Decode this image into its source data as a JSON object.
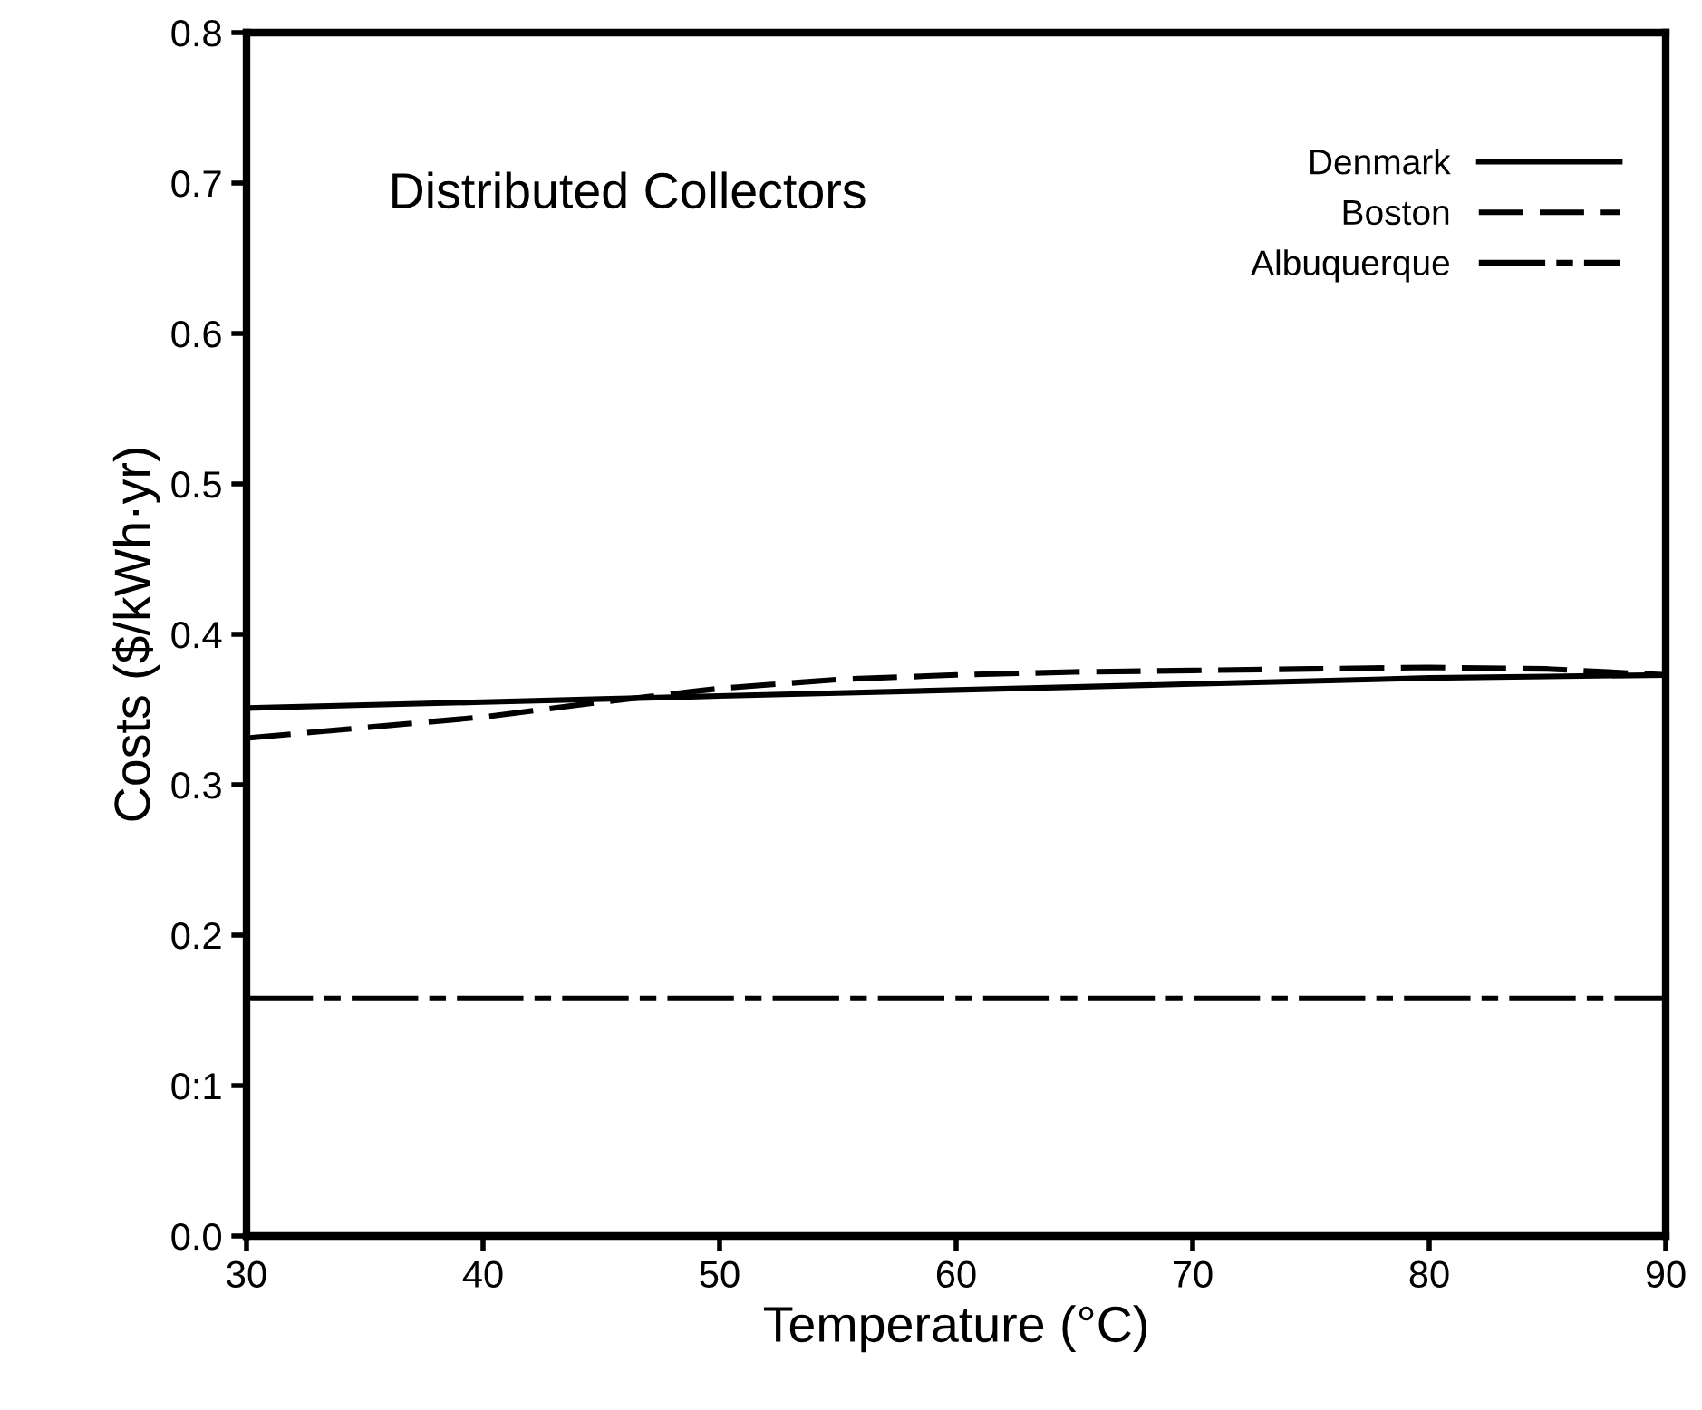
{
  "chart_data": {
    "type": "line",
    "title": "Distributed Collectors",
    "xlabel": "Temperature (°C)",
    "ylabel": "Costs ($/kWh·yr)",
    "x": [
      30,
      35,
      40,
      45,
      50,
      55,
      60,
      65,
      70,
      75,
      80,
      85,
      90
    ],
    "series": [
      {
        "name": "Denmark",
        "color": "#000000",
        "line_style": "solid",
        "values": [
          0.351,
          0.353,
          0.355,
          0.357,
          0.359,
          0.361,
          0.363,
          0.365,
          0.367,
          0.369,
          0.371,
          0.372,
          0.373
        ]
      },
      {
        "name": "Boston",
        "color": "#000000",
        "line_style": "dashed",
        "values": [
          0.331,
          0.338,
          0.345,
          0.355,
          0.364,
          0.37,
          0.373,
          0.375,
          0.376,
          0.377,
          0.378,
          0.377,
          0.373
        ]
      },
      {
        "name": "Albuquerque",
        "color": "#000000",
        "line_style": "dashdot",
        "values": [
          0.158,
          0.158,
          0.158,
          0.158,
          0.158,
          0.158,
          0.158,
          0.158,
          0.158,
          0.158,
          0.158,
          0.158,
          0.158
        ]
      }
    ],
    "xlim": [
      30,
      90
    ],
    "ylim": [
      0,
      0.8
    ],
    "xticks": [
      30,
      40,
      50,
      60,
      70,
      80,
      90
    ],
    "yticks": [
      {
        "value": 0,
        "label": "0.0"
      },
      {
        "value": 0.1,
        "label": "0:1"
      },
      {
        "value": 0.2,
        "label": "0.2"
      },
      {
        "value": 0.3,
        "label": "0.3"
      },
      {
        "value": 0.4,
        "label": "0.4"
      },
      {
        "value": 0.5,
        "label": "0.5"
      },
      {
        "value": 0.6,
        "label": "0.6"
      },
      {
        "value": 0.7,
        "label": "0.7"
      },
      {
        "value": 0.8,
        "label": "0.8"
      }
    ],
    "grid": false,
    "legend": "top right",
    "marker": "none"
  }
}
